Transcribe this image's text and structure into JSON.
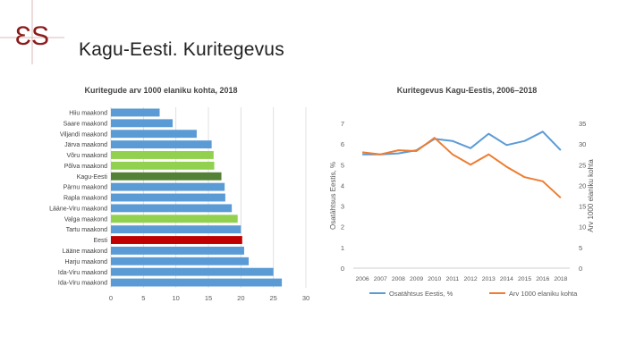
{
  "logo": {
    "text": "ƐS"
  },
  "title": "Kagu-Eesti. Kuritegevus",
  "colors": {
    "bar_default": "#5b9bd5",
    "bar_highlight_county": "#92d050",
    "bar_region": "#538135",
    "bar_country": "#c00000",
    "line_share": "#5b9bd5",
    "line_crime": "#ed7d31",
    "logo": "#8b1a1a"
  },
  "chart_data": [
    {
      "type": "bar",
      "orientation": "horizontal",
      "title": "Kuritegude arv 1000 elaniku kohta, 2018",
      "categories": [
        "Hiiu maakond",
        "Saare maakond",
        "Viljandi maakond",
        "Järva maakond",
        "Võru maakond",
        "Põlva maakond",
        "Kagu-Eesti",
        "Pärnu maakond",
        "Rapla maakond",
        "Lääne-Viru maakond",
        "Valga maakond",
        "Tartu maakond",
        "Eesti",
        "Lääne maakond",
        "Harju maakond",
        "Ida-Viru maakond",
        "Ida-Viru maakond"
      ],
      "values": [
        7.5,
        9.5,
        13.2,
        15.5,
        15.8,
        15.9,
        17.0,
        17.5,
        17.6,
        18.6,
        19.5,
        20.0,
        20.2,
        20.5,
        21.2,
        25.0,
        26.3
      ],
      "bar_colors": [
        "default",
        "default",
        "default",
        "default",
        "highlight_county",
        "highlight_county",
        "region",
        "default",
        "default",
        "default",
        "highlight_county",
        "default",
        "country",
        "default",
        "default",
        "default",
        "default"
      ],
      "xlim": [
        0,
        30
      ],
      "xticks": [
        "0",
        "5",
        "10",
        "15",
        "20",
        "25",
        "30"
      ],
      "grid": true
    },
    {
      "type": "line",
      "title": "Kuritegevus Kagu-Eestis, 2006–2018",
      "x": [
        "2006",
        "2007",
        "2008",
        "2009",
        "2010",
        "2011",
        "2012",
        "2013",
        "2014",
        "2015",
        "2016",
        "2018"
      ],
      "series": [
        {
          "name": "Osatähtsus Eestis, %",
          "axis": "left",
          "color": "line_share",
          "values": [
            5.5,
            5.5,
            5.55,
            5.7,
            6.25,
            6.15,
            5.8,
            6.5,
            5.95,
            6.15,
            6.6,
            5.7
          ]
        },
        {
          "name": "Arv 1000 elaniku kohta",
          "axis": "right",
          "color": "line_crime",
          "values": [
            28.0,
            27.5,
            28.5,
            28.3,
            31.5,
            27.5,
            25.0,
            27.5,
            24.5,
            22.0,
            21.0,
            17.0
          ]
        }
      ],
      "ylabel_left": "Osatähtsus Eestis, %",
      "ylabel_right": "Arv 1000 elaniku kohta",
      "ylim_left": [
        0,
        7
      ],
      "ylim_right": [
        0,
        35
      ],
      "yticks_left": [
        "0",
        "1",
        "2",
        "3",
        "4",
        "5",
        "6",
        "7"
      ],
      "yticks_right": [
        "0",
        "5",
        "10",
        "15",
        "20",
        "25",
        "30",
        "35"
      ],
      "legend": "bottom",
      "grid": false
    }
  ]
}
